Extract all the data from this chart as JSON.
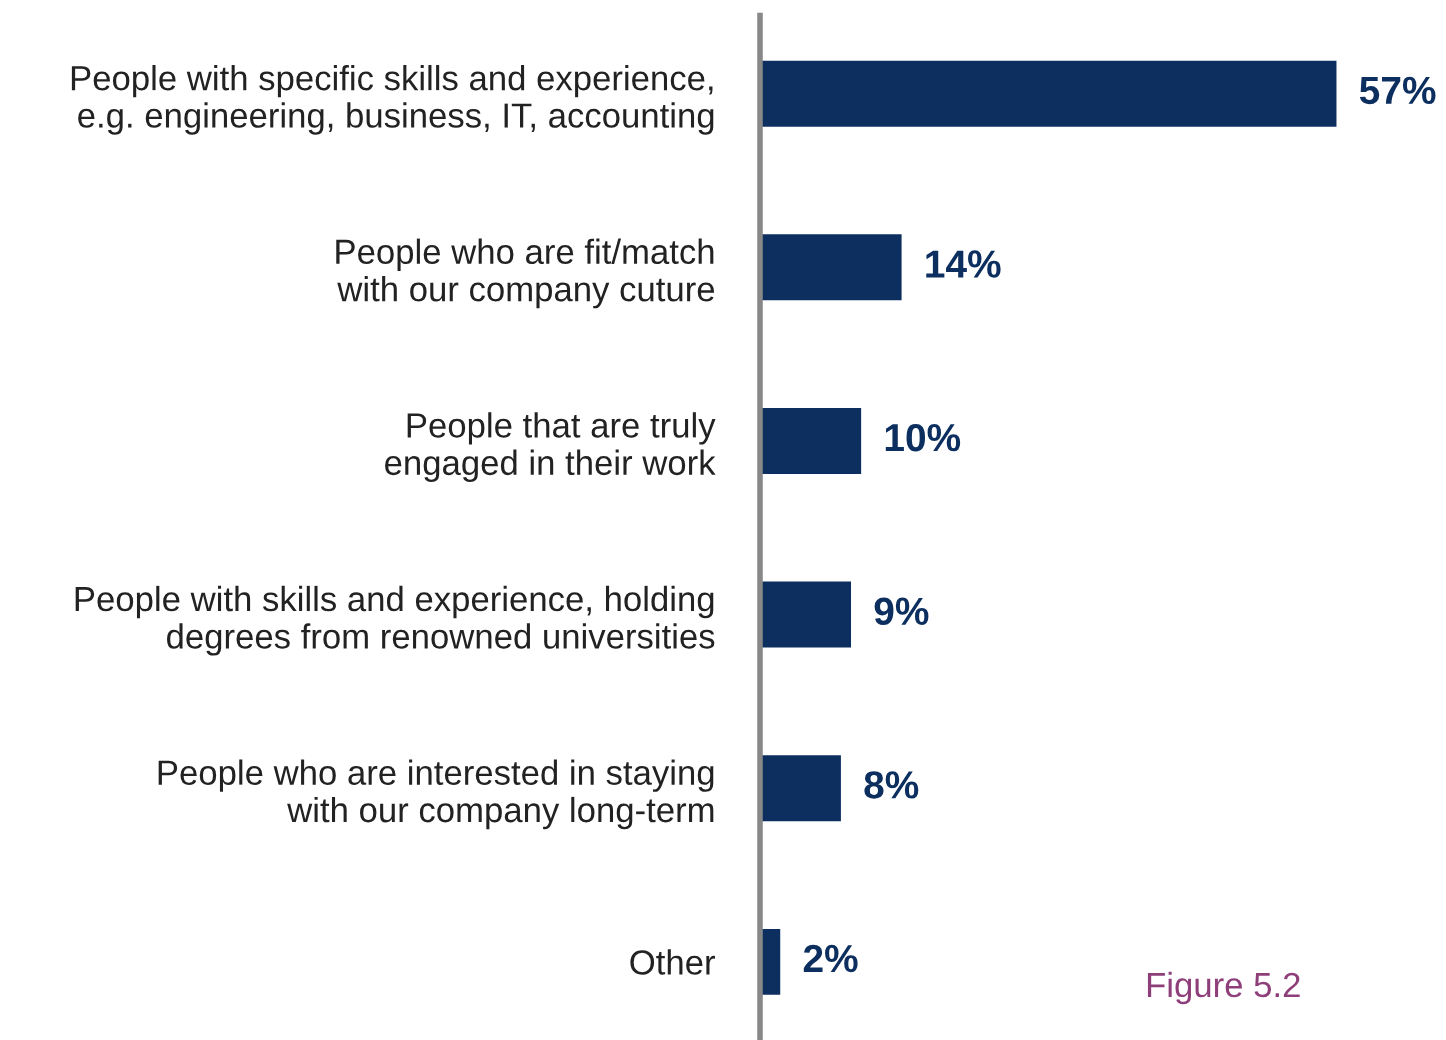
{
  "chart_data": {
    "type": "bar",
    "orientation": "horizontal",
    "categories": [
      "People with specific skills and experience,\ne.g. engineering, business, IT, accounting",
      "People who are fit/match\nwith our company cuture",
      "People that are truly\nengaged in their work",
      "People with skills and experience, holding\ndegrees from renowned universities",
      "People who are interested in staying\nwith our company long-term",
      "Other"
    ],
    "values": [
      57,
      14,
      10,
      9,
      8,
      2
    ],
    "value_labels": [
      "57%",
      "14%",
      "10%",
      "9%",
      "8%",
      "2%"
    ],
    "color": "#0c2f5f",
    "annotations": [
      "Figure 5.2"
    ],
    "grid": false,
    "legend": false
  }
}
